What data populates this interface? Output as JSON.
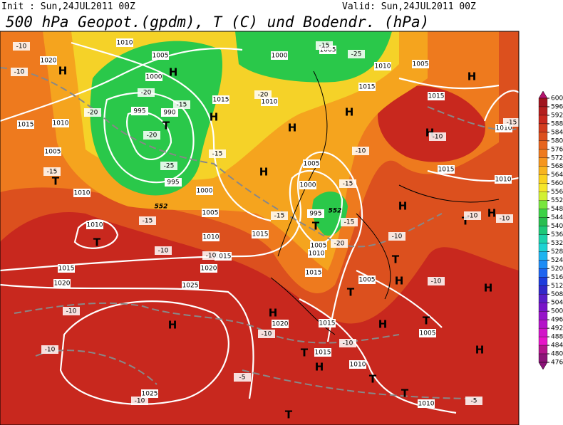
{
  "header": {
    "init": "Init : Sun,24JUL2011 00Z",
    "valid": "Valid: Sun,24JUL2011 00Z",
    "title": "500 hPa Geopot.(gpdm), T (C) und Bodendr. (hPa)"
  },
  "colorbar": {
    "levels": [
      600,
      596,
      592,
      588,
      584,
      580,
      576,
      572,
      568,
      564,
      560,
      556,
      552,
      548,
      544,
      540,
      536,
      532,
      528,
      524,
      520,
      516,
      512,
      508,
      504,
      500,
      496,
      492,
      488,
      484,
      480,
      476
    ],
    "colors": [
      "#b4146e",
      "#a0141e",
      "#b41e1e",
      "#c8281e",
      "#d23c1e",
      "#dc501e",
      "#e6641e",
      "#ee7a1e",
      "#f5961e",
      "#f8b41e",
      "#fad21e",
      "#f5e628",
      "#d2f032",
      "#78e63c",
      "#3cd246",
      "#28be50",
      "#1ec878",
      "#1ed2aa",
      "#1ed2d2",
      "#1eb4f0",
      "#1e8cf5",
      "#1e64f0",
      "#1e3cdc",
      "#3228c8",
      "#5a1ec8",
      "#7814c8",
      "#9614c8",
      "#b414c8",
      "#d214c8",
      "#e614c8",
      "#b4148c",
      "#8c1478"
    ]
  },
  "pressure_centers": [
    "H",
    "H",
    "H",
    "H",
    "H",
    "H",
    "H",
    "H",
    "H",
    "H",
    "H",
    "H",
    "H",
    "H",
    "H",
    "H",
    "H",
    "T",
    "T",
    "T",
    "T",
    "T",
    "T",
    "T",
    "T",
    "T",
    "T",
    "T",
    "T"
  ],
  "isobar_labels": [
    "1010",
    "1020",
    "1005",
    "1000",
    "995",
    "990",
    "1015",
    "1010",
    "1000",
    "1005",
    "1010",
    "1005",
    "1015",
    "1015",
    "1015",
    "1010",
    "1005",
    "995",
    "1000",
    "1005",
    "1010",
    "1010",
    "1010",
    "1015",
    "1015",
    "1020",
    "1015",
    "1020",
    "1025",
    "1005",
    "1000",
    "995",
    "1005",
    "1010",
    "1015",
    "1005",
    "1015",
    "1010",
    "1020",
    "1015",
    "1015",
    "1010",
    "1010",
    "1025",
    "1005",
    "1010"
  ],
  "temperature_labels": [
    "-10",
    "-10",
    "-20",
    "-20",
    "-15",
    "-20",
    "-25",
    "-15",
    "-15",
    "-10",
    "-10",
    "-15",
    "-20",
    "-25",
    "-15",
    "-15",
    "-20",
    "-15",
    "-10",
    "-15",
    "-10",
    "-10",
    "-15",
    "-10",
    "-10",
    "-10",
    "-10",
    "-10",
    "-10",
    "-5",
    "-10",
    "-5",
    "-10"
  ],
  "contour_labels": [
    "552",
    "552"
  ]
}
